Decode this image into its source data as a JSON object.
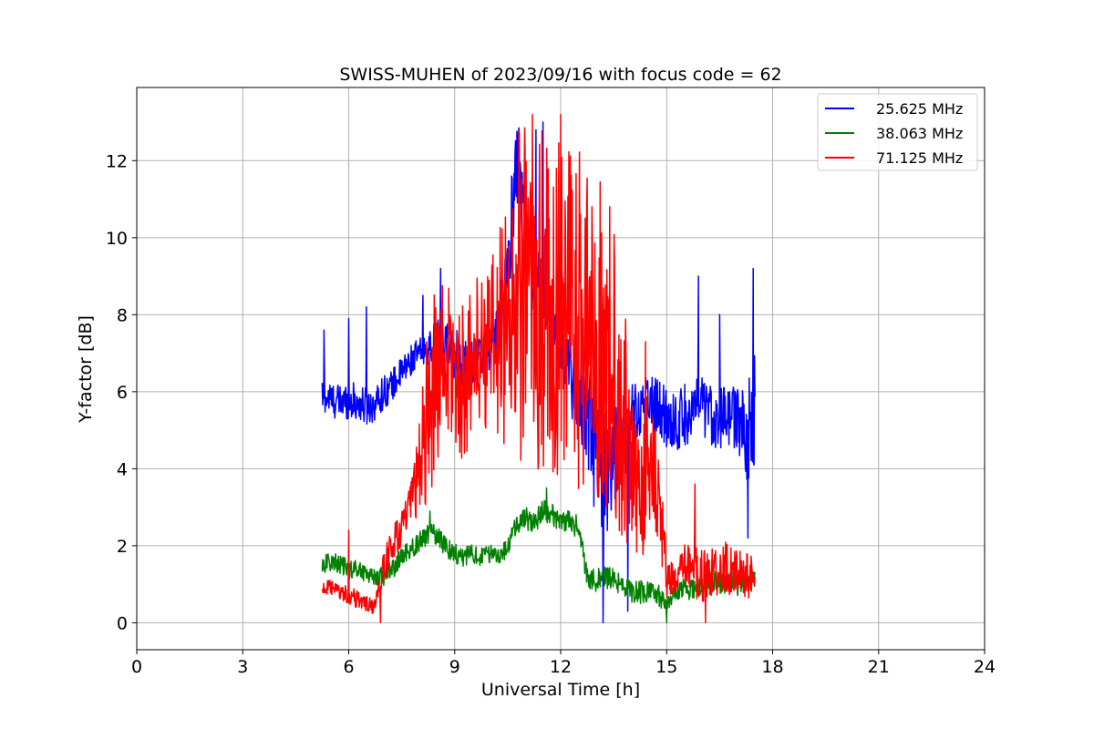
{
  "chart_data": {
    "type": "line",
    "title": "SWISS-MUHEN of 2023/09/16 with focus code = 62",
    "xlabel": "Universal Time [h]",
    "ylabel": "Y-factor [dB]",
    "xlim": [
      0,
      24
    ],
    "ylim": [
      -0.7,
      13.9
    ],
    "xticks": [
      0,
      3,
      6,
      9,
      12,
      15,
      18,
      21,
      24
    ],
    "yticks": [
      0,
      2,
      4,
      6,
      8,
      10,
      12
    ],
    "grid": true,
    "legend_position": "top-right",
    "series": [
      {
        "name": "25.625 MHz",
        "color": "#0000ff",
        "x": [
          5.25,
          5.5,
          5.75,
          6.0,
          6.25,
          6.5,
          6.75,
          7.0,
          7.25,
          7.5,
          7.75,
          8.0,
          8.25,
          8.5,
          8.75,
          9.0,
          9.25,
          9.5,
          9.75,
          10.0,
          10.25,
          10.5,
          10.75,
          11.0,
          11.25,
          11.5,
          11.75,
          12.0,
          12.25,
          12.5,
          12.75,
          13.0,
          13.25,
          13.5,
          13.75,
          14.0,
          14.25,
          14.5,
          14.75,
          15.0,
          15.25,
          15.5,
          15.75,
          16.0,
          16.25,
          16.5,
          16.75,
          17.0,
          17.25,
          17.5
        ],
        "y": [
          5.9,
          5.8,
          5.7,
          5.8,
          5.7,
          5.6,
          5.7,
          6.0,
          6.2,
          6.5,
          6.8,
          7.0,
          7.1,
          7.3,
          7.2,
          7.0,
          6.8,
          6.7,
          6.9,
          7.2,
          7.8,
          9.0,
          12.2,
          10.5,
          9.0,
          8.5,
          8.0,
          7.5,
          6.5,
          6.0,
          5.5,
          4.5,
          3.5,
          4.5,
          4.8,
          5.2,
          5.6,
          5.8,
          5.6,
          5.3,
          5.2,
          5.4,
          5.5,
          5.6,
          5.4,
          5.3,
          5.4,
          5.3,
          4.8,
          5.5
        ],
        "noise": [
          0.45,
          0.45,
          0.5,
          0.5,
          0.5,
          0.5,
          0.45,
          0.45,
          0.4,
          0.4,
          0.4,
          0.4,
          0.4,
          0.6,
          0.7,
          0.7,
          0.7,
          0.7,
          0.6,
          0.6,
          0.8,
          1.2,
          1.2,
          1.2,
          1.0,
          0.9,
          0.9,
          0.9,
          1.0,
          1.2,
          1.5,
          2.0,
          2.0,
          1.5,
          1.2,
          1.0,
          0.8,
          0.8,
          0.8,
          0.8,
          0.8,
          0.8,
          0.8,
          0.8,
          0.8,
          0.8,
          0.8,
          0.8,
          1.2,
          1.6
        ],
        "spikes": [
          [
            5.3,
            7.6
          ],
          [
            6.0,
            7.9
          ],
          [
            6.5,
            8.2
          ],
          [
            8.6,
            9.2
          ],
          [
            8.1,
            8.5
          ],
          [
            11.3,
            12.8
          ],
          [
            11.5,
            13.0
          ],
          [
            13.9,
            0.3
          ],
          [
            13.2,
            0.0
          ],
          [
            15.9,
            9.0
          ],
          [
            17.45,
            9.2
          ],
          [
            16.5,
            8.0
          ],
          [
            17.3,
            2.2
          ]
        ]
      },
      {
        "name": "38.063 MHz",
        "color": "#008000",
        "x": [
          5.25,
          5.5,
          5.75,
          6.0,
          6.25,
          6.5,
          6.75,
          7.0,
          7.25,
          7.5,
          7.75,
          8.0,
          8.25,
          8.5,
          8.75,
          9.0,
          9.25,
          9.5,
          9.75,
          10.0,
          10.25,
          10.5,
          10.75,
          11.0,
          11.25,
          11.5,
          11.75,
          12.0,
          12.25,
          12.5,
          12.75,
          13.0,
          13.25,
          13.5,
          13.75,
          14.0,
          14.25,
          14.5,
          14.75,
          15.0,
          15.25,
          15.5,
          15.75,
          16.0,
          16.25,
          16.5,
          16.75,
          17.0,
          17.25,
          17.5
        ],
        "y": [
          1.5,
          1.6,
          1.5,
          1.4,
          1.4,
          1.3,
          1.2,
          1.2,
          1.4,
          1.7,
          1.9,
          2.1,
          2.3,
          2.3,
          2.0,
          1.8,
          1.7,
          1.8,
          1.7,
          1.8,
          1.8,
          1.9,
          2.6,
          2.7,
          2.6,
          2.9,
          2.8,
          2.7,
          2.6,
          2.5,
          1.2,
          1.1,
          1.2,
          1.1,
          1.0,
          0.8,
          0.8,
          0.8,
          0.7,
          0.6,
          0.8,
          0.9,
          0.9,
          1.0,
          1.1,
          1.0,
          1.1,
          1.0,
          1.0,
          1.1
        ],
        "noise": [
          0.25,
          0.25,
          0.25,
          0.25,
          0.25,
          0.25,
          0.25,
          0.25,
          0.25,
          0.25,
          0.25,
          0.25,
          0.3,
          0.3,
          0.3,
          0.25,
          0.25,
          0.25,
          0.25,
          0.25,
          0.25,
          0.25,
          0.3,
          0.3,
          0.3,
          0.3,
          0.3,
          0.3,
          0.3,
          0.3,
          0.3,
          0.3,
          0.3,
          0.3,
          0.3,
          0.3,
          0.3,
          0.3,
          0.3,
          0.3,
          0.3,
          0.3,
          0.3,
          0.3,
          0.3,
          0.3,
          0.3,
          0.3,
          0.3,
          0.3
        ],
        "spikes": [
          [
            11.6,
            3.5
          ],
          [
            15.0,
            0.0
          ],
          [
            8.3,
            2.9
          ]
        ]
      },
      {
        "name": "71.125 MHz",
        "color": "#ff0000",
        "x": [
          5.25,
          5.5,
          5.75,
          6.0,
          6.25,
          6.5,
          6.75,
          7.0,
          7.25,
          7.5,
          7.75,
          8.0,
          8.25,
          8.5,
          8.75,
          9.0,
          9.25,
          9.5,
          9.75,
          10.0,
          10.25,
          10.5,
          10.75,
          11.0,
          11.25,
          11.5,
          11.75,
          12.0,
          12.25,
          12.5,
          12.75,
          13.0,
          13.25,
          13.5,
          13.75,
          14.0,
          14.25,
          14.5,
          14.75,
          15.0,
          15.25,
          15.5,
          15.75,
          16.0,
          16.25,
          16.5,
          16.75,
          17.0,
          17.25,
          17.5
        ],
        "y": [
          0.9,
          0.9,
          0.8,
          0.7,
          0.6,
          0.5,
          0.4,
          1.5,
          2.0,
          2.5,
          3.0,
          4.0,
          5.5,
          6.5,
          6.8,
          6.5,
          6.2,
          6.8,
          7.2,
          7.0,
          7.5,
          8.0,
          8.5,
          8.5,
          8.3,
          8.5,
          8.0,
          8.0,
          8.0,
          7.8,
          7.5,
          7.5,
          7.0,
          6.5,
          5.5,
          4.0,
          3.0,
          4.5,
          3.5,
          1.2,
          1.0,
          1.5,
          1.4,
          1.2,
          1.3,
          1.4,
          1.4,
          1.3,
          1.2,
          1.2
        ],
        "noise": [
          0.2,
          0.2,
          0.2,
          0.25,
          0.25,
          0.2,
          0.2,
          0.4,
          0.5,
          0.5,
          0.6,
          1.2,
          2.5,
          2.5,
          2.2,
          2.0,
          2.0,
          2.0,
          2.2,
          2.2,
          2.8,
          3.5,
          4.2,
          4.5,
          4.5,
          4.5,
          4.5,
          4.5,
          4.5,
          4.5,
          4.5,
          4.5,
          4.5,
          4.0,
          3.5,
          2.0,
          1.5,
          2.2,
          1.5,
          0.6,
          0.4,
          0.6,
          0.7,
          0.7,
          0.6,
          0.7,
          0.7,
          0.6,
          0.6,
          0.5
        ],
        "spikes": [
          [
            6.0,
            2.4
          ],
          [
            6.9,
            0.0
          ],
          [
            12.0,
            13.2
          ],
          [
            11.2,
            13.2
          ],
          [
            15.8,
            3.6
          ],
          [
            16.1,
            0.0
          ],
          [
            13.3,
            3.0
          ],
          [
            14.4,
            7.3
          ]
        ]
      }
    ]
  }
}
